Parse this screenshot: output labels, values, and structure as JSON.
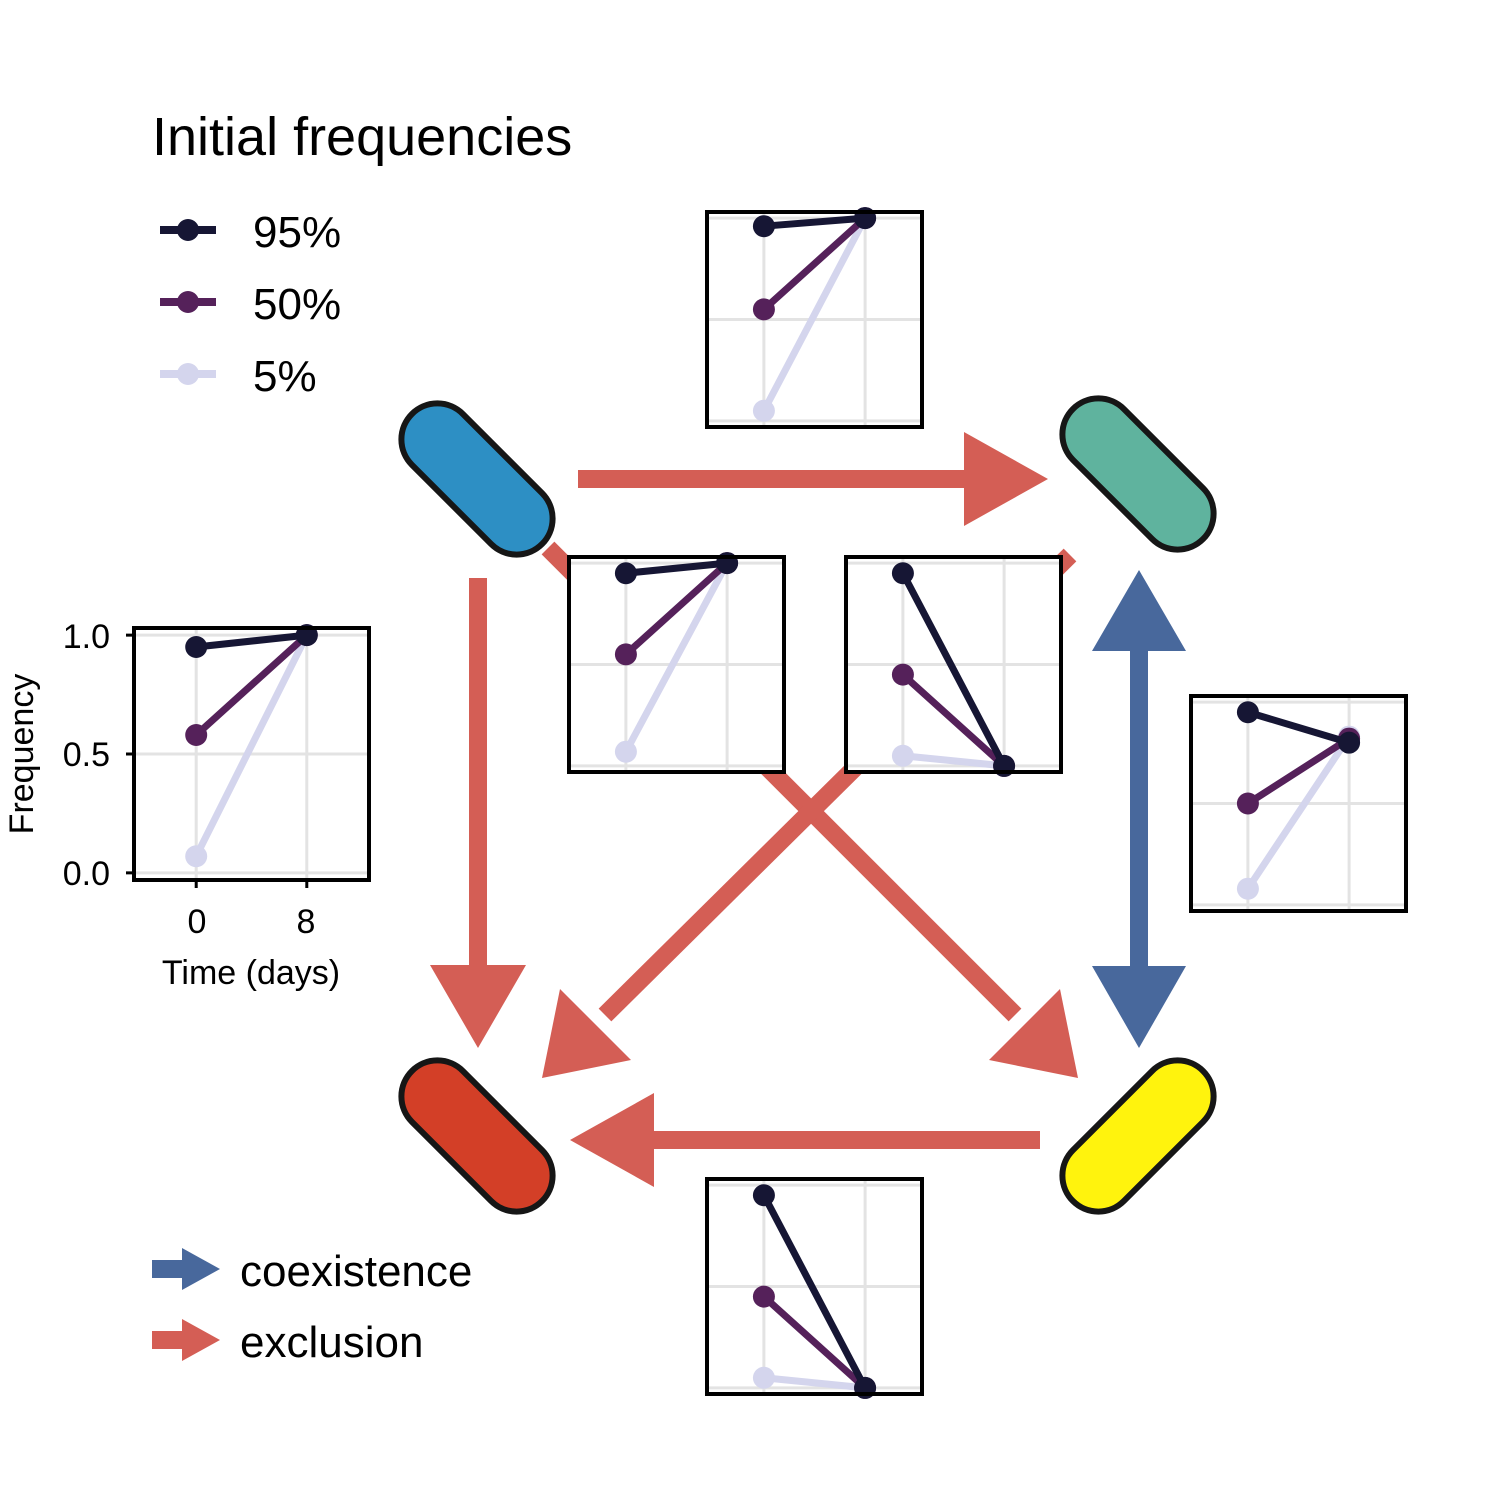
{
  "legend": {
    "title": "Initial frequencies",
    "items": [
      {
        "label": "95%",
        "color": "#161634"
      },
      {
        "label": "50%",
        "color": "#55215a"
      },
      {
        "label": "5%",
        "color": "#d4d5ed"
      }
    ]
  },
  "arrow_legend": {
    "items": [
      {
        "label": "coexistence",
        "color": "#48689c"
      },
      {
        "label": "exclusion",
        "color": "#d45e55"
      }
    ]
  },
  "species_colors": {
    "top_left": "#2d8fc4",
    "top_right": "#5fb39e",
    "bottom_left": "#d33f27",
    "bottom_right": "#fff30d"
  },
  "axes": {
    "ylabel": "Frequency",
    "xlabel": "Time (days)",
    "yticks": [
      "1.0",
      "0.5",
      "0.0"
    ],
    "xticks": [
      "0",
      "8"
    ]
  },
  "chart_data": [
    {
      "type": "line",
      "name": "",
      "x": [
        0,
        8
      ],
      "xlim": [
        -4.5,
        12.5
      ],
      "ylim": [
        -0.03,
        1.03
      ],
      "series": [
        {
          "name": "95%",
          "values": [
            0.95,
            1.0
          ]
        },
        {
          "name": "50%",
          "values": [
            0.58,
            1.0
          ]
        },
        {
          "name": "5%",
          "values": [
            0.07,
            1.0
          ]
        }
      ]
    },
    {
      "type": "line",
      "name": "",
      "x": [
        0,
        8
      ],
      "xlim": [
        -4.5,
        12.5
      ],
      "ylim": [
        -0.03,
        1.03
      ],
      "series": [
        {
          "name": "95%",
          "values": [
            0.96,
            1.0
          ]
        },
        {
          "name": "50%",
          "values": [
            0.55,
            1.0
          ]
        },
        {
          "name": "5%",
          "values": [
            0.05,
            1.0
          ]
        }
      ]
    },
    {
      "type": "line",
      "name": "",
      "x": [
        0,
        8
      ],
      "xlim": [
        -4.5,
        12.5
      ],
      "ylim": [
        -0.03,
        1.03
      ],
      "series": [
        {
          "name": "95%",
          "values": [
            0.95,
            1.0
          ]
        },
        {
          "name": "50%",
          "values": [
            0.55,
            1.0
          ]
        },
        {
          "name": "5%",
          "values": [
            0.07,
            1.0
          ]
        }
      ]
    },
    {
      "type": "line",
      "name": "",
      "x": [
        0,
        8
      ],
      "xlim": [
        -4.5,
        12.5
      ],
      "ylim": [
        -0.03,
        1.03
      ],
      "series": [
        {
          "name": "95%",
          "values": [
            0.95,
            0.0
          ]
        },
        {
          "name": "50%",
          "values": [
            0.45,
            0.0
          ]
        },
        {
          "name": "5%",
          "values": [
            0.05,
            0.0
          ]
        }
      ]
    },
    {
      "type": "line",
      "name": "",
      "x": [
        0,
        8
      ],
      "xlim": [
        -4.5,
        12.5
      ],
      "ylim": [
        -0.03,
        1.03
      ],
      "series": [
        {
          "name": "95%",
          "values": [
            0.95,
            0.8
          ]
        },
        {
          "name": "50%",
          "values": [
            0.5,
            0.82
          ]
        },
        {
          "name": "5%",
          "values": [
            0.08,
            0.83
          ]
        }
      ]
    },
    {
      "type": "line",
      "name": "",
      "x": [
        0,
        8
      ],
      "xlim": [
        -4.5,
        12.5
      ],
      "ylim": [
        -0.03,
        1.03
      ],
      "series": [
        {
          "name": "95%",
          "values": [
            0.95,
            0.0
          ]
        },
        {
          "name": "50%",
          "values": [
            0.45,
            0.0
          ]
        },
        {
          "name": "5%",
          "values": [
            0.05,
            0.0
          ]
        }
      ]
    }
  ]
}
